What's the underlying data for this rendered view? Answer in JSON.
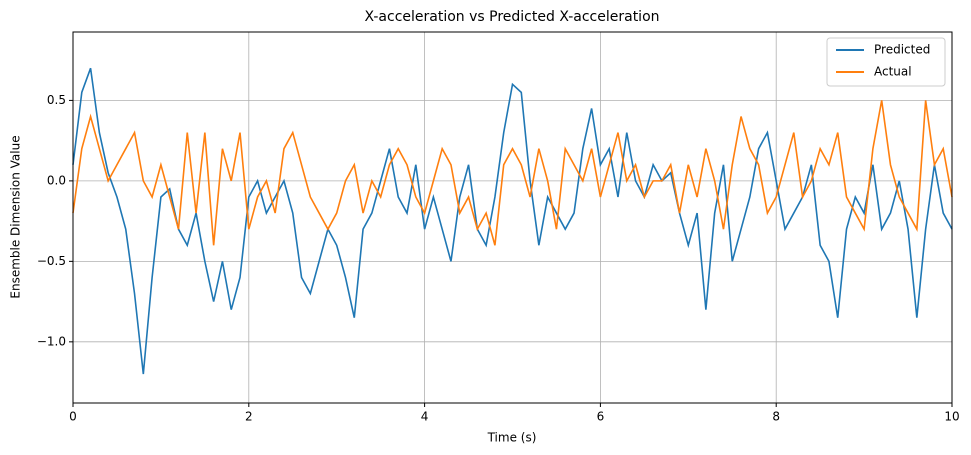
{
  "chart_data": {
    "type": "line",
    "title": "X-acceleration vs Predicted X-acceleration",
    "x_label": "Time (s)",
    "y_label": "Ensemble Dimension Value",
    "xlim": [
      0,
      10
    ],
    "ylim": [
      -1.38,
      0.925
    ],
    "xticks": [
      0,
      2,
      4,
      6,
      8,
      10
    ],
    "yticks": [
      {
        "value": -1.0,
        "label": "−1.0"
      },
      {
        "value": -0.5,
        "label": "−0.5"
      },
      {
        "value": 0.0,
        "label": "0.0"
      },
      0.5
    ],
    "grid": true,
    "legend": "upper right",
    "x": [
      0,
      0.1,
      0.2,
      0.3,
      0.4,
      0.5,
      0.6,
      0.7,
      0.8,
      0.9,
      1,
      1.1,
      1.2,
      1.3,
      1.4,
      1.5,
      1.6,
      1.7,
      1.8,
      1.9,
      2,
      2.1,
      2.2,
      2.3,
      2.4,
      2.5,
      2.6,
      2.7,
      2.8,
      2.9,
      3,
      3.1,
      3.2,
      3.3,
      3.4,
      3.5,
      3.6,
      3.7,
      3.8,
      3.9,
      4,
      4.1,
      4.2,
      4.3,
      4.4,
      4.5,
      4.6,
      4.7,
      4.8,
      4.9,
      5,
      5.1,
      5.2,
      5.3,
      5.4,
      5.5,
      5.6,
      5.7,
      5.8,
      5.9,
      6,
      6.1,
      6.2,
      6.3,
      6.4,
      6.5,
      6.6,
      6.7,
      6.8,
      6.9,
      7,
      7.1,
      7.2,
      7.3,
      7.4,
      7.5,
      7.6,
      7.7,
      7.8,
      7.9,
      8,
      8.1,
      8.2,
      8.3,
      8.4,
      8.5,
      8.6,
      8.7,
      8.8,
      8.9,
      9,
      9.1,
      9.2,
      9.3,
      9.4,
      9.5,
      9.6,
      9.7,
      9.8,
      9.9,
      10
    ],
    "series": [
      {
        "name": "Predicted",
        "color": "#1f77b4",
        "values": [
          0.1,
          0.55,
          0.7,
          0.3,
          0.05,
          -0.1,
          -0.3,
          -0.7,
          -1.2,
          -0.6,
          -0.1,
          -0.05,
          -0.3,
          -0.4,
          -0.2,
          -0.5,
          -0.75,
          -0.5,
          -0.8,
          -0.6,
          -0.1,
          0.0,
          -0.2,
          -0.1,
          0.0,
          -0.2,
          -0.6,
          -0.7,
          -0.5,
          -0.3,
          -0.4,
          -0.6,
          -0.85,
          -0.3,
          -0.2,
          0.0,
          0.2,
          -0.1,
          -0.2,
          0.1,
          -0.3,
          -0.1,
          -0.3,
          -0.5,
          -0.1,
          0.1,
          -0.3,
          -0.4,
          -0.1,
          0.3,
          0.6,
          0.55,
          0.0,
          -0.4,
          -0.1,
          -0.2,
          -0.3,
          -0.2,
          0.2,
          0.45,
          0.1,
          0.2,
          -0.1,
          0.3,
          0.0,
          -0.1,
          0.1,
          0.0,
          0.05,
          -0.2,
          -0.4,
          -0.2,
          -0.8,
          -0.2,
          0.1,
          -0.5,
          -0.3,
          -0.1,
          0.2,
          0.3,
          0.0,
          -0.3,
          -0.2,
          -0.1,
          0.1,
          -0.4,
          -0.5,
          -0.85,
          -0.3,
          -0.1,
          -0.2,
          0.1,
          -0.3,
          -0.2,
          0.0,
          -0.3,
          -0.85,
          -0.3,
          0.1,
          -0.2,
          -0.3
        ]
      },
      {
        "name": "Actual",
        "color": "#ff7f0e",
        "values": [
          -0.2,
          0.2,
          0.4,
          0.2,
          0.0,
          0.1,
          0.2,
          0.3,
          0.0,
          -0.1,
          0.1,
          -0.1,
          -0.3,
          0.3,
          -0.2,
          0.3,
          -0.4,
          0.2,
          0.0,
          0.3,
          -0.3,
          -0.1,
          0.0,
          -0.2,
          0.2,
          0.3,
          0.1,
          -0.1,
          -0.2,
          -0.3,
          -0.2,
          0.0,
          0.1,
          -0.2,
          0.0,
          -0.1,
          0.1,
          0.2,
          0.1,
          -0.1,
          -0.2,
          0.0,
          0.2,
          0.1,
          -0.2,
          -0.1,
          -0.3,
          -0.2,
          -0.4,
          0.1,
          0.2,
          0.1,
          -0.1,
          0.2,
          0.0,
          -0.3,
          0.2,
          0.1,
          0.0,
          0.2,
          -0.1,
          0.1,
          0.3,
          0.0,
          0.1,
          -0.1,
          0.0,
          0.0,
          0.1,
          -0.2,
          0.1,
          -0.1,
          0.2,
          0.0,
          -0.3,
          0.1,
          0.4,
          0.2,
          0.1,
          -0.2,
          -0.1,
          0.1,
          0.3,
          -0.1,
          0.0,
          0.2,
          0.1,
          0.3,
          -0.1,
          -0.2,
          -0.3,
          0.2,
          0.5,
          0.1,
          -0.1,
          -0.2,
          -0.3,
          0.5,
          0.1,
          0.2,
          -0.1
        ]
      }
    ]
  }
}
